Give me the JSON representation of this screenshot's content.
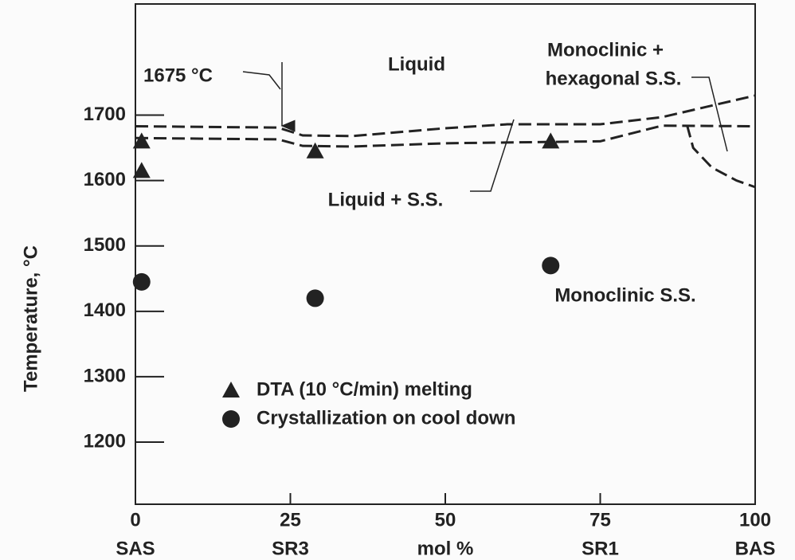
{
  "chart_data": {
    "type": "scatter",
    "xlabel": "mol %",
    "ylabel": "Temperature, °C",
    "xlim": [
      0,
      100
    ],
    "ylim": [
      1105,
      1870
    ],
    "xticks": [
      0,
      25,
      50,
      75,
      100
    ],
    "yticks": [
      1200,
      1300,
      1400,
      1500,
      1600,
      1700
    ],
    "composition_labels": [
      {
        "value": 0,
        "label": "SAS"
      },
      {
        "value": 25,
        "label": "SR3"
      },
      {
        "value": 75,
        "label": "SR1"
      },
      {
        "value": 100,
        "label": "BAS"
      }
    ],
    "series": [
      {
        "name": "DTA (10 °C/min) melting",
        "marker": "triangle",
        "color": "#222222",
        "x": [
          1,
          1,
          29,
          67
        ],
        "values": [
          1660,
          1615,
          1645,
          1660
        ]
      },
      {
        "name": "Crystallization on cool down",
        "marker": "circle",
        "color": "#222222",
        "x": [
          1,
          29,
          67
        ],
        "values": [
          1445,
          1420,
          1470
        ]
      }
    ],
    "boundaries": [
      {
        "x": [
          0,
          23,
          27,
          35,
          50,
          60,
          75,
          85,
          100
        ],
        "values": [
          1683,
          1681,
          1669,
          1668,
          1680,
          1686,
          1686,
          1697,
          1730
        ]
      },
      {
        "x": [
          0,
          23,
          27,
          35,
          50,
          75,
          80,
          85,
          100
        ],
        "values": [
          1665,
          1663,
          1653,
          1652,
          1657,
          1660,
          1672,
          1684,
          1683
        ]
      },
      {
        "x": [
          89,
          90,
          93,
          97,
          100
        ],
        "values": [
          1685,
          1650,
          1620,
          1600,
          1590
        ]
      }
    ],
    "annotations": [
      "1675 °C",
      "Liquid",
      "Monoclinic +",
      "hexagonal S.S.",
      "Liquid + S.S.",
      "Monoclinic S.S."
    ]
  }
}
